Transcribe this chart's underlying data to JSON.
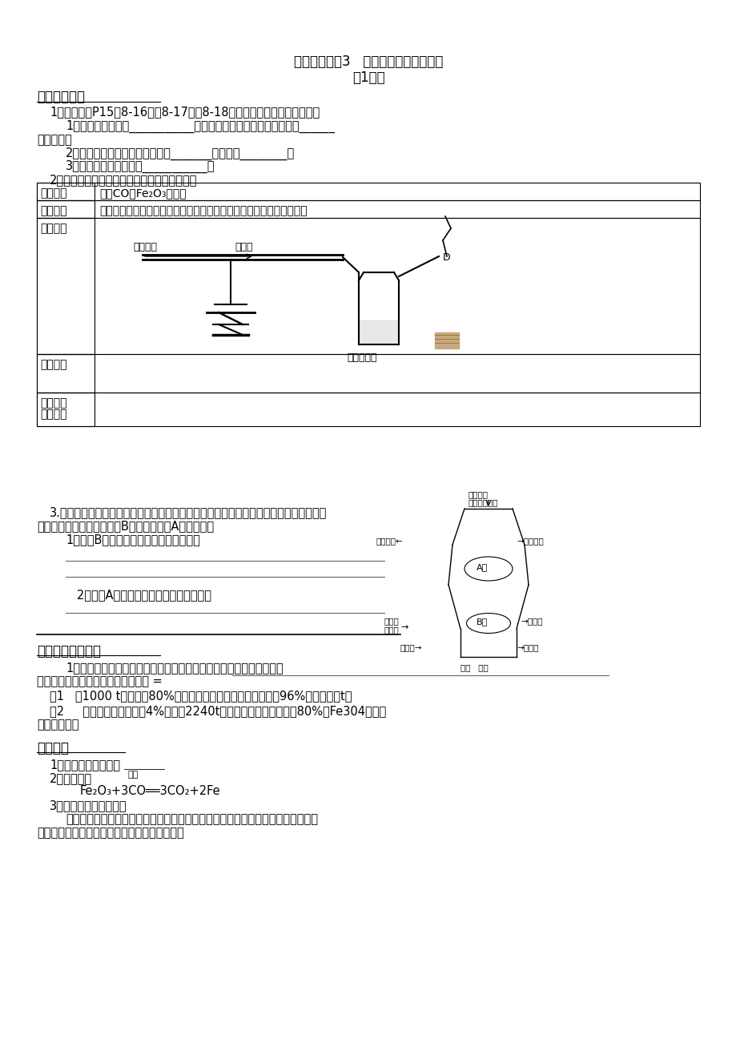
{
  "title_line1": "【学案】课题3   金属资源的保护和利用",
  "title_line2": "第1课时",
  "bg_color": "#ffffff",
  "text_color": "#000000",
  "section1_title": "一、铁的冶炼",
  "section2_title": "二、不纯物的计算",
  "section3_title": "三、小结"
}
